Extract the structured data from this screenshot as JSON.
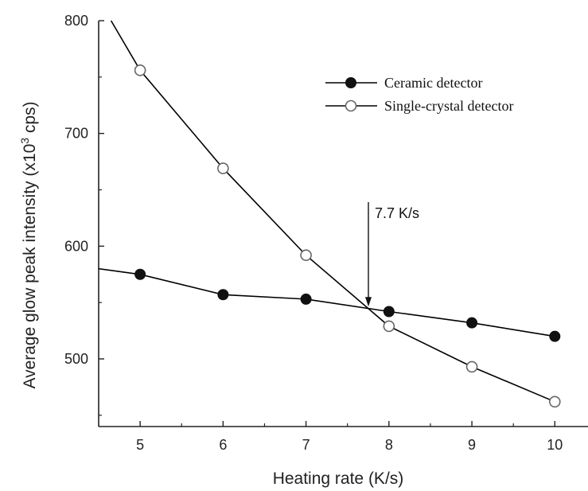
{
  "chart_data": {
    "type": "line",
    "title": "",
    "xlabel": "Heating rate (K/s)",
    "ylabel": {
      "prefix": "Average glow peak intensity (x10",
      "superscript": "3",
      "suffix": " cps)"
    },
    "xlim": [
      4.5,
      10.4
    ],
    "ylim": [
      440,
      800
    ],
    "x_ticks": [
      5,
      6,
      7,
      8,
      9,
      10
    ],
    "y_ticks": [
      500,
      600,
      700,
      800
    ],
    "legend_position": "top-right",
    "grid": false,
    "series": [
      {
        "name": "Ceramic detector",
        "marker": "filled-circle",
        "color": "#000000",
        "x": [
          5,
          6,
          7,
          8,
          9,
          10
        ],
        "y": [
          575,
          557,
          553,
          542,
          532,
          520
        ],
        "line_extends_to": [
          [
            4.5,
            580
          ]
        ]
      },
      {
        "name": "Single-crystal detector",
        "marker": "open-circle",
        "color": "#000000",
        "x": [
          5,
          6,
          7,
          8,
          9,
          10
        ],
        "y": [
          756,
          669,
          592,
          529,
          493,
          462
        ],
        "line_extends_to": [
          [
            4.65,
            800
          ]
        ]
      }
    ],
    "annotations": [
      {
        "text": "7.7 K/s",
        "x": 7.75,
        "y": 545,
        "type": "arrow"
      }
    ]
  }
}
